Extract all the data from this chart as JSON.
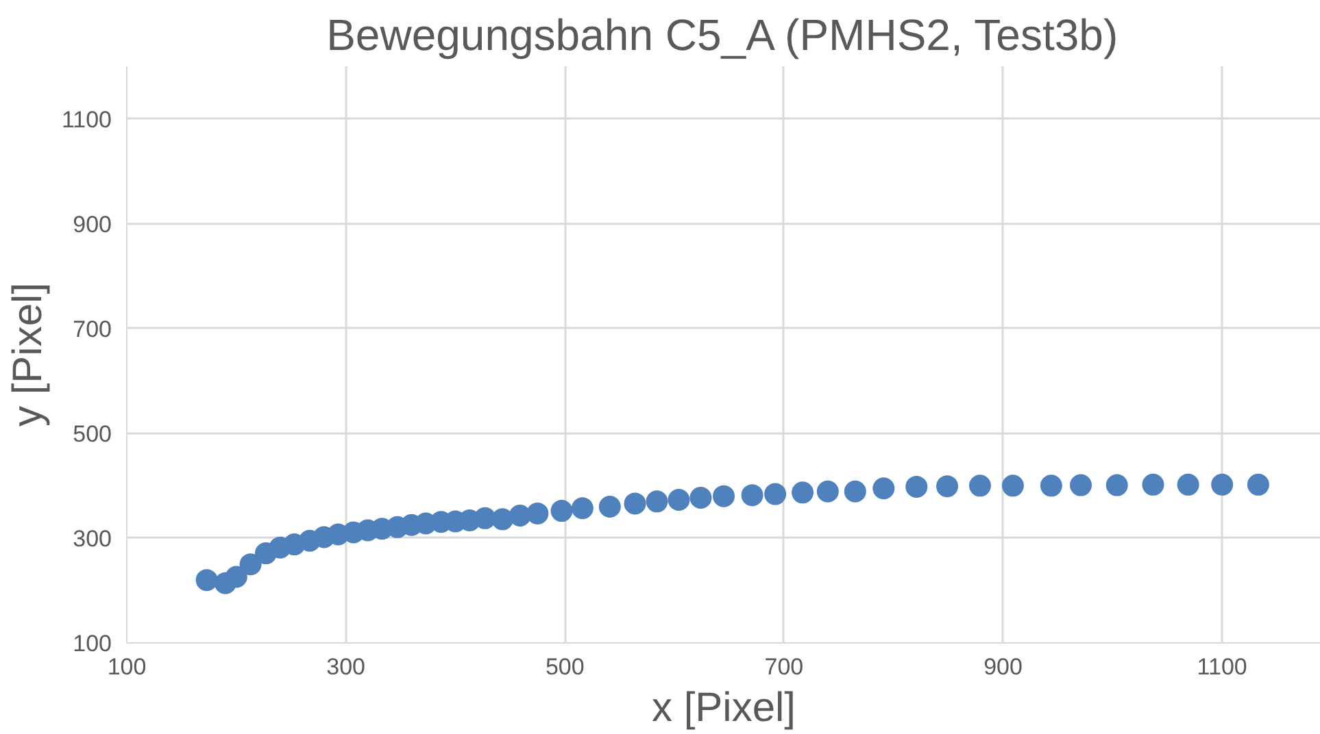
{
  "chart_data": {
    "type": "scatter",
    "title": "Bewegungsbahn C5_A (PMHS2, Test3b)",
    "xlabel": "x [Pixel]",
    "ylabel": "y [Pixel]",
    "xlim": [
      100,
      1190
    ],
    "ylim": [
      100,
      1200
    ],
    "xticks": [
      100,
      300,
      500,
      700,
      900,
      1100
    ],
    "yticks": [
      100,
      300,
      500,
      700,
      900,
      1100
    ],
    "grid": true,
    "marker": "circle",
    "series": [
      {
        "color": "#4f81bd",
        "x": [
          173,
          190,
          200,
          213,
          227,
          240,
          253,
          267,
          280,
          293,
          307,
          320,
          333,
          347,
          360,
          373,
          387,
          400,
          413,
          427,
          443,
          459,
          475,
          497,
          516,
          541,
          564,
          584,
          604,
          624,
          645,
          671,
          692,
          717,
          740,
          765,
          791,
          821,
          849,
          879,
          909,
          944,
          971,
          1004,
          1037,
          1069,
          1100,
          1133
        ],
        "values": [
          220,
          214,
          226,
          250,
          271,
          282,
          288,
          295,
          302,
          307,
          311,
          315,
          318,
          321,
          325,
          328,
          331,
          332,
          334,
          338,
          336,
          343,
          347,
          352,
          357,
          360,
          366,
          370,
          373,
          377,
          380,
          382,
          384,
          387,
          389,
          389,
          395,
          398,
          399,
          400,
          400,
          400,
          401,
          401,
          402,
          402,
          402,
          402
        ]
      }
    ]
  }
}
